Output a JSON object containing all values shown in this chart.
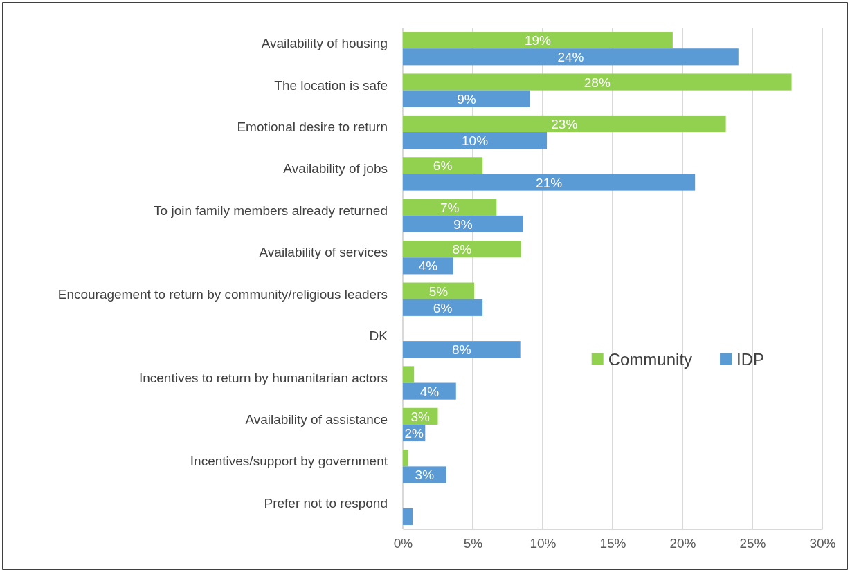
{
  "chart_data": {
    "type": "bar",
    "orientation": "horizontal",
    "categories": [
      "Availability of housing",
      "The location is safe",
      "Emotional desire to return",
      "Availability of jobs",
      "To join family members already returned",
      "Availability of services",
      "Encouragement to return by community/religious leaders",
      "DK",
      "Incentives to return by humanitarian actors",
      "Availability of assistance",
      "Incentives/support by government",
      "Prefer not to respond"
    ],
    "series": [
      {
        "name": "Community",
        "color": "#92d050",
        "values": [
          19.3,
          27.8,
          23.1,
          5.7,
          6.7,
          8.45,
          5.1,
          null,
          0.8,
          2.5,
          0.4,
          null
        ],
        "value_labels": [
          "19%",
          "28%",
          "23%",
          "6%",
          "7%",
          "8%",
          "5%",
          null,
          null,
          "3%",
          null,
          null
        ]
      },
      {
        "name": "IDP",
        "color": "#5b9bd5",
        "values": [
          24.0,
          9.1,
          10.3,
          20.9,
          8.6,
          3.6,
          5.7,
          8.4,
          3.8,
          1.6,
          3.1,
          0.7
        ],
        "value_labels": [
          "24%",
          "9%",
          "10%",
          "21%",
          "9%",
          "4%",
          "6%",
          "8%",
          "4%",
          "2%",
          "3%",
          null
        ]
      }
    ],
    "xlim": [
      0,
      30
    ],
    "xticks": [
      {
        "value": 0,
        "label": "0%"
      },
      {
        "value": 5,
        "label": "5%"
      },
      {
        "value": 10,
        "label": "10%"
      },
      {
        "value": 15,
        "label": "15%"
      },
      {
        "value": 20,
        "label": "20%"
      },
      {
        "value": 25,
        "label": "25%"
      },
      {
        "value": 30,
        "label": "30%"
      }
    ],
    "grid": "x",
    "legend": "right"
  }
}
